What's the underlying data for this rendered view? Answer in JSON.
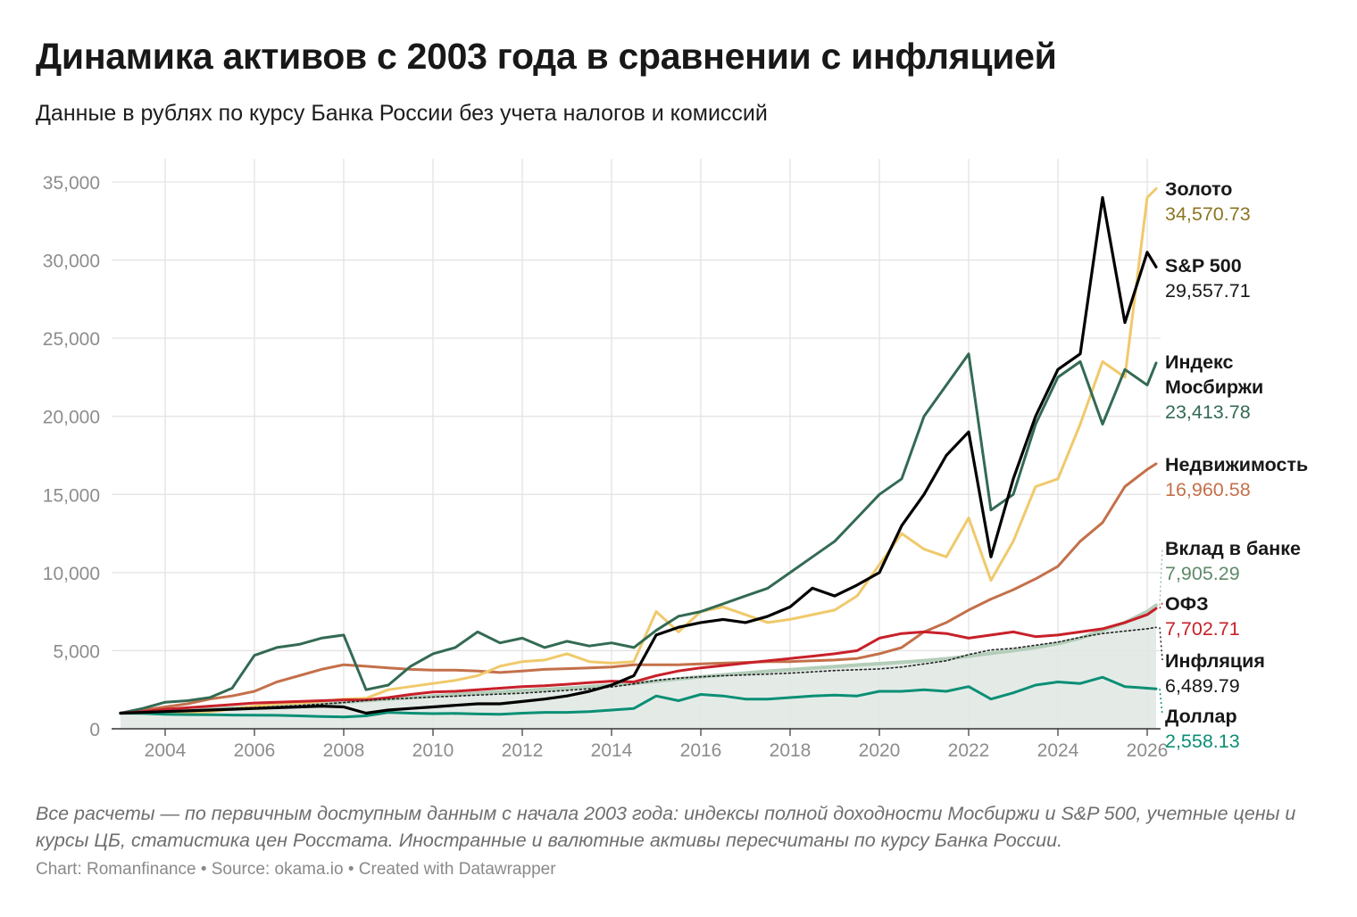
{
  "header": {
    "title": "Динамика активов с 2003 года в сравнении с инфляцией",
    "subtitle": "Данные в рублях по курсу Банка России без учета налогов и комиссий"
  },
  "footer": {
    "note": "Все расчеты — по первичным доступным данным с начала 2003 года: индексы полной доходности Мосбиржи и S&P 500, учетные цены и курсы ЦБ, статистика цен Росстата. Иностранные и валютные активы пересчитаны по курсу Банка России.",
    "credit": "Chart: Romanfinance • Source: okama.io • Created with Datawrapper"
  },
  "chart_data": {
    "type": "line",
    "title": "Динамика активов с 2003 года в сравнении с инфляцией",
    "subtitle": "Данные в рублях по курсу Банка России без учета налогов и комиссий",
    "xlabel": "",
    "ylabel": "",
    "xlim": [
      2002.8,
      2026.3
    ],
    "ylim": [
      0,
      35000
    ],
    "x_ticks": [
      "2004",
      "2006",
      "2008",
      "2010",
      "2012",
      "2014",
      "2016",
      "2018",
      "2020",
      "2022",
      "2024",
      "2026"
    ],
    "y_ticks": [
      "0",
      "5,000",
      "10,000",
      "15,000",
      "20,000",
      "25,000",
      "30,000",
      "35,000"
    ],
    "grid": true,
    "legend": "direct labels at line ends (right)",
    "x": [
      2003.0,
      2003.5,
      2004.0,
      2004.5,
      2005.0,
      2005.5,
      2006.0,
      2006.5,
      2007.0,
      2007.5,
      2008.0,
      2008.5,
      2009.0,
      2009.5,
      2010.0,
      2010.5,
      2011.0,
      2011.5,
      2012.0,
      2012.5,
      2013.0,
      2013.5,
      2014.0,
      2014.5,
      2015.0,
      2015.5,
      2016.0,
      2016.5,
      2017.0,
      2017.5,
      2018.0,
      2018.5,
      2019.0,
      2019.5,
      2020.0,
      2020.5,
      2021.0,
      2021.5,
      2022.0,
      2022.5,
      2023.0,
      2023.5,
      2024.0,
      2024.5,
      2025.0,
      2025.5,
      2026.0,
      2026.2
    ],
    "series": [
      {
        "name": "Золото",
        "value_label": "34,570.73",
        "color": "#f0c96b",
        "label_color": "#8c7522",
        "values": [
          1000,
          1050,
          1100,
          1050,
          1100,
          1250,
          1450,
          1600,
          1650,
          1750,
          1900,
          1950,
          2500,
          2700,
          2900,
          3100,
          3400,
          4000,
          4300,
          4400,
          4800,
          4300,
          4200,
          4300,
          7500,
          6200,
          7500,
          7800,
          7300,
          6800,
          7000,
          7300,
          7600,
          8500,
          10500,
          12500,
          11500,
          11000,
          13500,
          9500,
          12000,
          15500,
          16000,
          19500,
          23500,
          22500,
          34000,
          34570.73
        ]
      },
      {
        "name": "S&P 500",
        "value_label": "29,557.71",
        "color": "#000000",
        "label_color": "#181818",
        "values": [
          1000,
          1050,
          1100,
          1150,
          1200,
          1250,
          1300,
          1350,
          1400,
          1450,
          1400,
          1000,
          1200,
          1300,
          1400,
          1500,
          1600,
          1600,
          1750,
          1900,
          2100,
          2400,
          2800,
          3400,
          6000,
          6500,
          6800,
          7000,
          6800,
          7200,
          7800,
          9000,
          8500,
          9200,
          10000,
          13000,
          15000,
          17500,
          19000,
          11000,
          16000,
          20000,
          23000,
          24000,
          34000,
          26000,
          30500,
          29557.71
        ]
      },
      {
        "name": "Индекс Мосбиржи",
        "value_label": "23,413.78",
        "color": "#336a53",
        "label_color": "#336a53",
        "values": [
          1000,
          1300,
          1700,
          1800,
          2000,
          2600,
          4700,
          5200,
          5400,
          5800,
          6000,
          2500,
          2800,
          4000,
          4800,
          5200,
          6200,
          5500,
          5800,
          5200,
          5600,
          5300,
          5500,
          5200,
          6300,
          7200,
          7500,
          8000,
          8500,
          9000,
          10000,
          11000,
          12000,
          13500,
          15000,
          16000,
          20000,
          22000,
          24000,
          14000,
          15000,
          19500,
          22500,
          23500,
          19500,
          23000,
          22000,
          23413.78
        ]
      },
      {
        "name": "Недвижимость",
        "value_label": "16,960.58",
        "color": "#c4704a",
        "label_color": "#c4704a",
        "values": [
          1000,
          1200,
          1400,
          1600,
          1900,
          2100,
          2400,
          3000,
          3400,
          3800,
          4100,
          4000,
          3900,
          3800,
          3750,
          3750,
          3700,
          3600,
          3700,
          3800,
          3850,
          3900,
          3950,
          4100,
          4100,
          4100,
          4150,
          4200,
          4250,
          4300,
          4300,
          4350,
          4400,
          4500,
          4800,
          5200,
          6200,
          6800,
          7600,
          8300,
          8900,
          9600,
          10400,
          12000,
          13200,
          15500,
          16600,
          16960.58
        ]
      },
      {
        "name": "Вклад в банке",
        "value_label": "7,905.29",
        "color": "#b3cdb9",
        "label_color": "#5f8a6a",
        "area": true,
        "values": [
          1000,
          1060,
          1120,
          1180,
          1250,
          1320,
          1390,
          1460,
          1540,
          1620,
          1700,
          1800,
          1900,
          2000,
          2100,
          2200,
          2280,
          2360,
          2440,
          2520,
          2600,
          2700,
          2800,
          2900,
          3050,
          3200,
          3330,
          3450,
          3570,
          3680,
          3780,
          3880,
          3980,
          4080,
          4170,
          4260,
          4360,
          4480,
          4650,
          4830,
          5000,
          5200,
          5450,
          5800,
          6300,
          6800,
          7500,
          7905.29
        ]
      },
      {
        "name": "ОФЗ",
        "value_label": "7,702.71",
        "color": "#c8202a",
        "label_color": "#c8202a",
        "values": [
          1000,
          1100,
          1250,
          1350,
          1450,
          1550,
          1650,
          1700,
          1750,
          1800,
          1850,
          1850,
          2000,
          2200,
          2350,
          2400,
          2500,
          2600,
          2700,
          2750,
          2850,
          2950,
          3050,
          3000,
          3400,
          3700,
          3900,
          4050,
          4200,
          4350,
          4500,
          4650,
          4800,
          5000,
          5800,
          6100,
          6200,
          6100,
          5800,
          6000,
          6200,
          5900,
          6000,
          6200,
          6400,
          6800,
          7300,
          7702.71
        ]
      },
      {
        "name": "Инфляция",
        "value_label": "6,489.79",
        "color": "#222222",
        "label_color": "#181818",
        "dashed": true,
        "values": [
          1000,
          1070,
          1120,
          1180,
          1230,
          1300,
          1360,
          1420,
          1490,
          1580,
          1680,
          1810,
          1900,
          1960,
          2030,
          2090,
          2160,
          2220,
          2280,
          2370,
          2460,
          2560,
          2680,
          2870,
          3100,
          3240,
          3330,
          3400,
          3450,
          3500,
          3560,
          3640,
          3730,
          3780,
          3830,
          3950,
          4150,
          4350,
          4750,
          5050,
          5150,
          5350,
          5550,
          5850,
          6100,
          6250,
          6400,
          6489.79
        ]
      },
      {
        "name": "Доллар",
        "value_label": "2,558.13",
        "color": "#0a8f75",
        "label_color": "#0a8f75",
        "values": [
          1000,
          980,
          930,
          910,
          900,
          880,
          870,
          860,
          830,
          780,
          760,
          830,
          1050,
          1000,
          970,
          980,
          950,
          930,
          1000,
          1050,
          1050,
          1100,
          1200,
          1300,
          2100,
          1800,
          2200,
          2100,
          1900,
          1900,
          2000,
          2100,
          2150,
          2100,
          2400,
          2400,
          2500,
          2400,
          2700,
          1900,
          2300,
          2800,
          3000,
          2900,
          3300,
          2700,
          2600,
          2558.13
        ]
      }
    ]
  }
}
